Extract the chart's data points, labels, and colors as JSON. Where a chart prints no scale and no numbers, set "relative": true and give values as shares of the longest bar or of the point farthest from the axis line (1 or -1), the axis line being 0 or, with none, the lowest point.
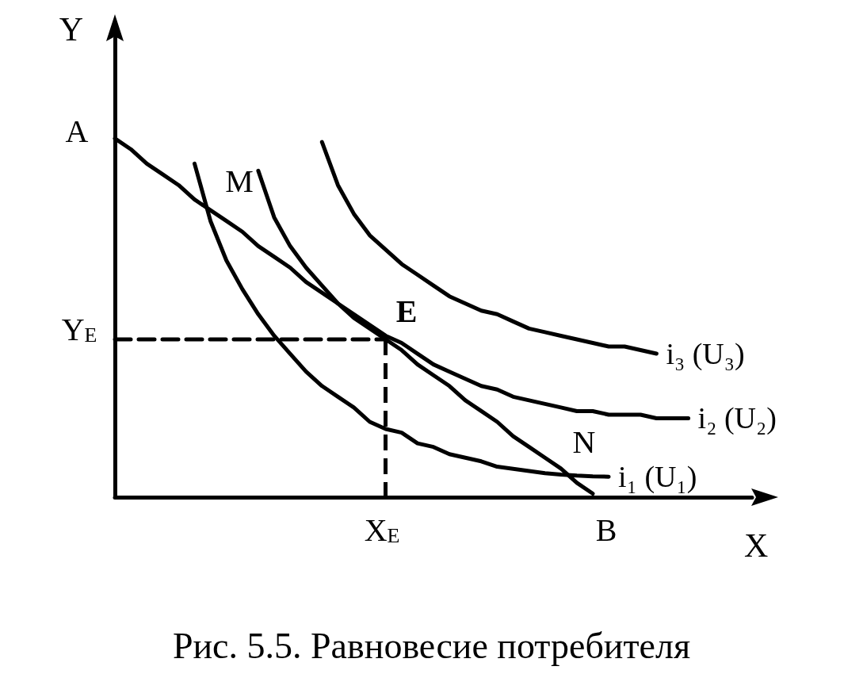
{
  "chart_data": {
    "type": "line",
    "title": "Рис. 5.5. Равновесие потребителя",
    "xlabel": "X",
    "ylabel": "Y",
    "relative": true,
    "marker": "none",
    "categories": [
      null,
      null,
      null,
      null,
      null,
      null,
      null,
      null,
      null,
      null,
      null,
      null,
      null,
      null,
      null,
      null,
      null,
      null,
      null,
      null,
      null,
      null,
      null,
      null,
      null,
      null,
      null,
      null,
      null,
      null,
      null,
      null,
      null,
      null,
      null,
      null,
      null,
      null,
      null,
      null,
      null
    ],
    "series": [
      {
        "name": "i₁ (U₁)",
        "color": "#000000",
        "values": [
          null,
          null,
          null,
          null,
          null,
          0.93,
          0.77,
          0.66,
          0.58,
          0.51,
          0.45,
          0.4,
          0.35,
          0.31,
          0.28,
          0.25,
          0.21,
          0.19,
          0.18,
          0.15,
          0.14,
          0.12,
          0.11,
          0.1,
          0.085,
          0.079,
          0.073,
          0.067,
          0.063,
          0.06,
          0.058,
          0.057,
          null,
          null,
          null,
          null,
          null,
          null,
          null,
          null,
          null
        ]
      },
      {
        "name": "i₂ (U₂)",
        "color": "#000000",
        "values": [
          null,
          null,
          null,
          null,
          null,
          null,
          null,
          null,
          null,
          0.91,
          0.78,
          0.7,
          0.64,
          0.59,
          0.54,
          0.51,
          0.48,
          0.45,
          0.43,
          0.4,
          0.37,
          0.35,
          0.33,
          0.31,
          0.3,
          0.28,
          0.27,
          0.26,
          0.25,
          0.24,
          0.24,
          0.23,
          0.23,
          0.23,
          0.22,
          0.22,
          0.22,
          null,
          null,
          null,
          null
        ]
      },
      {
        "name": "i₃ (U₃)",
        "color": "#000000",
        "values": [
          null,
          null,
          null,
          null,
          null,
          null,
          null,
          null,
          null,
          null,
          null,
          null,
          null,
          0.99,
          0.87,
          0.79,
          0.73,
          0.69,
          0.65,
          0.62,
          0.59,
          0.56,
          0.54,
          0.52,
          0.51,
          0.49,
          0.47,
          0.46,
          0.45,
          0.44,
          0.43,
          0.42,
          0.42,
          0.41,
          0.4,
          null,
          null,
          null,
          null,
          null,
          null
        ]
      },
      {
        "color": "#000000",
        "values": [
          1,
          0.97,
          0.93,
          0.9,
          0.87,
          0.83,
          0.8,
          0.77,
          0.74,
          0.7,
          0.67,
          0.64,
          0.6,
          0.57,
          0.54,
          0.5,
          0.47,
          0.44,
          0.41,
          0.37,
          0.34,
          0.31,
          0.27,
          0.24,
          0.21,
          0.17,
          0.14,
          0.11,
          0.08,
          0.04,
          0.01,
          null,
          null,
          null,
          null,
          null,
          null,
          null,
          null,
          null,
          null
        ]
      },
      {
        "color": "#000000",
        "line_style": "dashed",
        "values": [
          0.44,
          0.44,
          0.44,
          0.44,
          0.44,
          0.44,
          0.44,
          0.44,
          0.44,
          0.44,
          0.44,
          0.44,
          0.44,
          0.44,
          0.44,
          0.44,
          0.44,
          0.44,
          null,
          null,
          null,
          null,
          null,
          null,
          null,
          null,
          null,
          null,
          null,
          null,
          null,
          null,
          null,
          null,
          null,
          null,
          null,
          null,
          null,
          null,
          null
        ]
      }
    ],
    "annotations": [
      "A",
      "Y$_{E}$",
      "X$_{E}$",
      "B",
      "M",
      "E",
      "N"
    ]
  }
}
